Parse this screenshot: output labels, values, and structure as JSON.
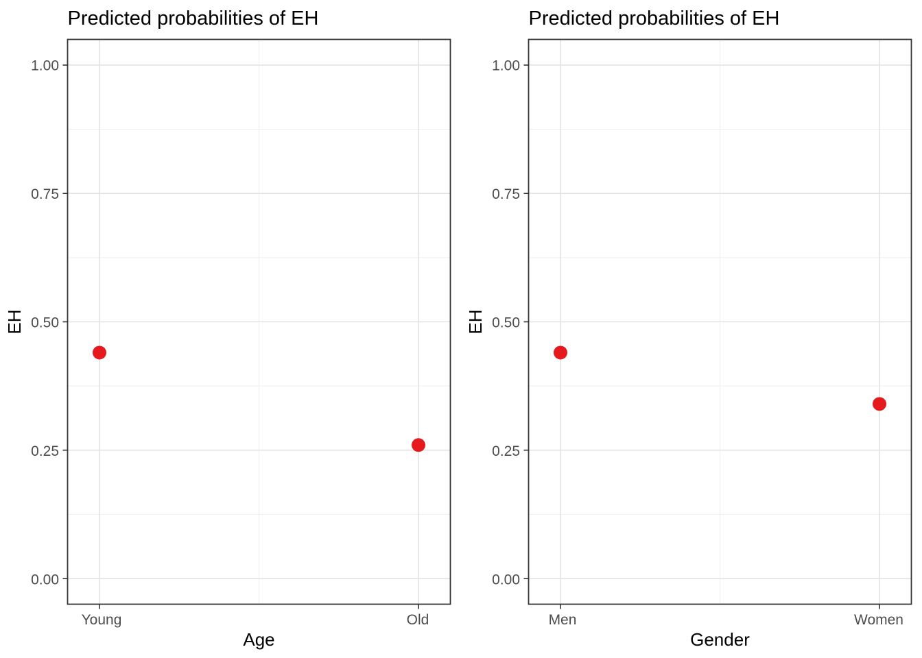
{
  "figure_title": "Predicted probabilities of EH (two-panel figure)",
  "palette": {
    "point": "#E41A1C",
    "grid_major": "#E3E3E3",
    "grid_minor": "#EFEFEF",
    "panel_border": "#333333",
    "axis_tick": "#333333",
    "tick_label_text": "#4D4D4D",
    "title_text": "#000000"
  },
  "chart_data": [
    {
      "type": "scatter",
      "title": "Predicted probabilities of EH",
      "xlabel": "Age",
      "ylabel": "EH",
      "categories": [
        "Young",
        "Old"
      ],
      "values": [
        0.44,
        0.26
      ],
      "ylim": [
        0,
        1
      ],
      "yticks": [
        0.0,
        0.25,
        0.5,
        0.75,
        1.0
      ],
      "ytick_labels": [
        "0.00",
        "0.25",
        "0.50",
        "0.75",
        "1.00"
      ],
      "grid": "major and minor, light gray on white",
      "legend": "none",
      "point_color": "#E41A1C"
    },
    {
      "type": "scatter",
      "title": "Predicted probabilities of EH",
      "xlabel": "Gender",
      "ylabel": "EH",
      "categories": [
        "Men",
        "Women"
      ],
      "values": [
        0.44,
        0.34
      ],
      "ylim": [
        0,
        1
      ],
      "yticks": [
        0.0,
        0.25,
        0.5,
        0.75,
        1.0
      ],
      "ytick_labels": [
        "0.00",
        "0.25",
        "0.50",
        "0.75",
        "1.00"
      ],
      "grid": "major and minor, light gray on white",
      "legend": "none",
      "point_color": "#E41A1C"
    }
  ]
}
